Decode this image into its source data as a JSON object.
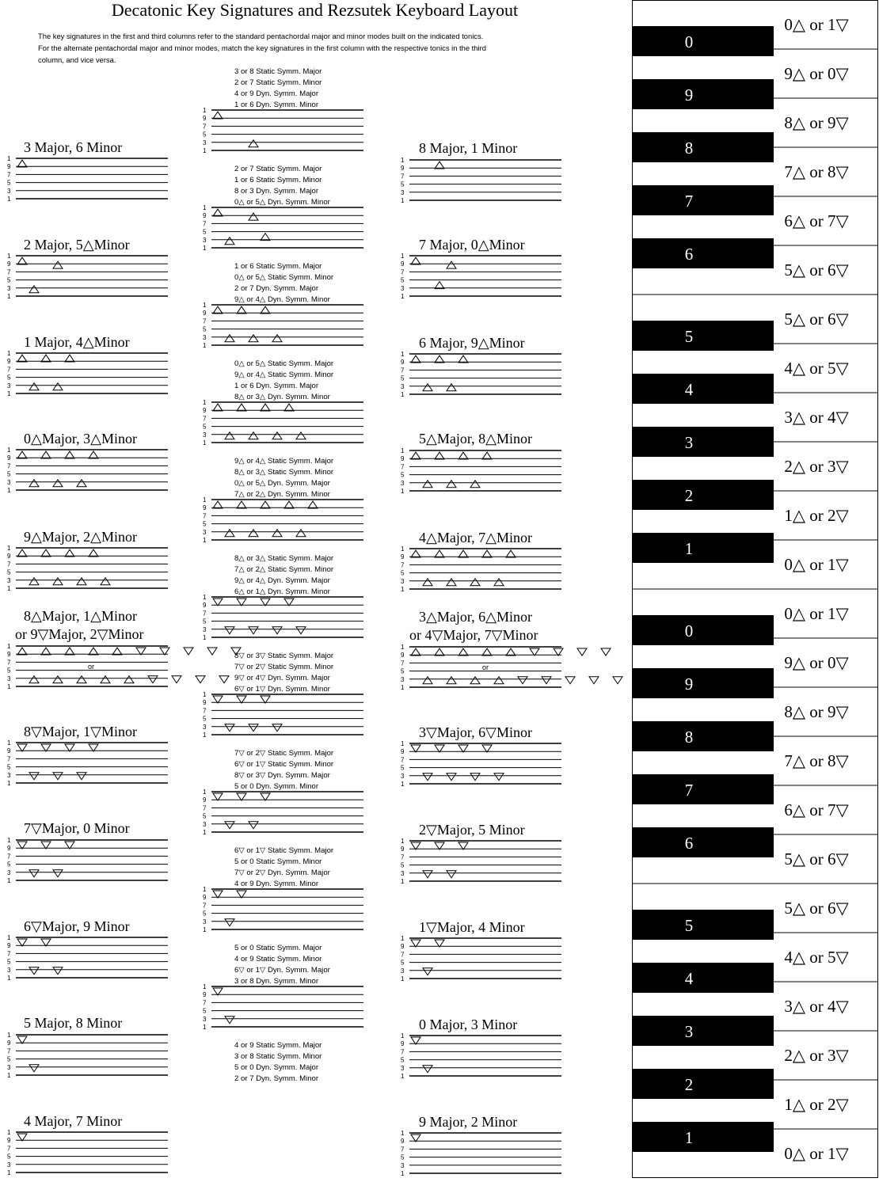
{
  "title": "Decatonic Key Signatures and Rezsutek Keyboard Layout",
  "intro": [
    "The key signatures in the first and third columns refer to the standard pentachordal major and minor modes built on the indicated tonics.",
    "For the alternate pentachordal major and minor modes, match the key signatures in the first column with the respective tonics in the third",
    "column, and vice versa."
  ],
  "staff_line_labels": [
    "1",
    "9",
    "7",
    "5",
    "3",
    "1"
  ],
  "or_text": "or",
  "left_labels": [
    "3   Major, 6   Minor",
    "2   Major, 5△Minor",
    "1   Major, 4△Minor",
    "0△Major, 3△Minor",
    "9△Major, 2△Minor",
    "8△Major, 1△Minor",
    "or 9▽Major, 2▽Minor",
    "8▽Major, 1▽Minor",
    "7▽Major, 0   Minor",
    "6▽Major, 9   Minor",
    "5   Major, 8   Minor",
    "4   Major, 7   Minor"
  ],
  "right_labels": [
    "8   Major, 1   Minor",
    "7   Major, 0△Minor",
    "6   Major, 9△Minor",
    "5△Major, 8△Minor",
    "4△Major, 7△Minor",
    "3△Major, 6△Minor",
    "or 4▽Major, 7▽Minor",
    "3▽Major, 6▽Minor",
    "2▽Major, 5   Minor",
    "1▽Major, 4   Minor",
    "0   Major, 3   Minor",
    "9   Major, 2   Minor"
  ],
  "middle_captions": [
    [
      "3   or 8   Static Symm. Major",
      "2   or 7   Static Symm. Minor",
      "4   or 9   Dyn. Symm. Major",
      "1   or 6   Dyn. Symm. Minor"
    ],
    [
      "2   or 7   Static Symm. Major",
      "1   or 6   Static Symm. Minor",
      "8   or 3   Dyn. Symm. Major",
      "0△ or 5△ Dyn. Symm. Minor"
    ],
    [
      "1   or 6   Static Symm. Major",
      "0△ or 5△ Static Symm. Minor",
      "2   or 7   Dyn. Symm. Major",
      "9△ or 4△ Dyn. Symm. Minor"
    ],
    [
      "0△ or 5△ Static Symm. Major",
      "9△ or 4△ Static Symm. Minor",
      "1   or 6   Dyn. Symm. Major",
      "8△ or 3△ Dyn. Symm. Minor"
    ],
    [
      "9△ or 4△ Static Symm. Major",
      "8△ or 3△ Static Symm. Minor",
      "0△ or 5△ Dyn. Symm. Major",
      "7△ or 2△ Dyn. Symm. Minor"
    ],
    [
      "8△ or 3△ Static Symm. Major",
      "7△ or 2△ Static Symm. Minor",
      "9△ or 4△ Dyn. Symm. Major",
      "6△ or 1△ Dyn. Symm. Minor"
    ],
    [
      "8▽ or 3▽ Static Symm. Major",
      "7▽ or 2▽ Static Symm. Minor",
      "9▽ or 4▽ Dyn. Symm. Major",
      "6▽ or 1▽ Dyn. Symm. Minor"
    ],
    [
      "7▽ or 2▽ Static Symm. Major",
      "6▽ or 1▽ Static Symm. Minor",
      "8▽ or 3▽ Dyn. Symm. Major",
      "5   or 0   Dyn. Symm. Minor"
    ],
    [
      "6▽ or 1▽ Static Symm. Major",
      "5   or 0   Static Symm. Minor",
      "7▽ or 2▽ Dyn. Symm. Major",
      "4   or 9   Dyn. Symm. Minor"
    ],
    [
      "5   or 0   Static Symm. Major",
      "4   or 9   Static Symm. Minor",
      "6▽ or 1▽ Dyn. Symm. Major",
      "3   or 8   Dyn. Symm. Minor"
    ],
    [
      "4   or 9   Static Symm. Major",
      "3   or 8   Static Symm. Minor",
      "5   or 0   Dyn. Symm. Major",
      "2   or 7   Dyn. Symm. Minor"
    ]
  ],
  "keyboard": {
    "black_keys": [
      "0",
      "9",
      "8",
      "7",
      "6",
      "5",
      "4",
      "3",
      "2",
      "1",
      "0",
      "9",
      "8",
      "7",
      "6",
      "5",
      "4",
      "3",
      "2",
      "1"
    ],
    "white_keys": [
      "0△ or 1▽",
      "9△ or 0▽",
      "8△ or 9▽",
      "7△ or 8▽",
      "6△ or 7▽",
      "5△ or 6▽",
      "5△ or 6▽",
      "4△ or 5▽",
      "3△ or 4▽",
      "2△ or 3▽",
      "1△ or 2▽",
      "0△ or 1▽",
      "0△ or 1▽",
      "9△ or 0▽",
      "8△ or 9▽",
      "7△ or 8▽",
      "6△ or 7▽",
      "5△ or 6▽",
      "5△ or 6▽",
      "4△ or 5▽",
      "3△ or 4▽",
      "2△ or 3▽",
      "1△ or 2▽",
      "0△ or 1▽"
    ]
  },
  "staves": {
    "L": [
      [
        [
          0,
          "u"
        ]
      ],
      [
        [
          0,
          "u"
        ],
        [
          1,
          "u"
        ],
        [
          3,
          "u"
        ]
      ],
      [
        [
          0,
          "u"
        ],
        [
          1,
          "u"
        ],
        [
          2,
          "u"
        ],
        [
          3,
          "u"
        ],
        [
          4,
          "u"
        ]
      ],
      [
        [
          0,
          "u"
        ],
        [
          1,
          "u"
        ],
        [
          2,
          "u"
        ],
        [
          3,
          "u"
        ],
        [
          4,
          "u"
        ],
        [
          5,
          "u"
        ],
        [
          6,
          "u"
        ]
      ],
      [
        [
          0,
          "u"
        ],
        [
          1,
          "u"
        ],
        [
          2,
          "u"
        ],
        [
          3,
          "u"
        ],
        [
          4,
          "u"
        ],
        [
          5,
          "u"
        ],
        [
          6,
          "u"
        ],
        [
          7,
          "u"
        ]
      ],
      [
        [
          0,
          "u"
        ],
        [
          1,
          "u"
        ],
        [
          2,
          "u"
        ],
        [
          3,
          "u"
        ],
        [
          4,
          "u"
        ],
        [
          5,
          "u"
        ],
        [
          6,
          "u"
        ],
        [
          7,
          "u"
        ],
        [
          8,
          "u"
        ],
        [
          9,
          "u"
        ],
        [
          10,
          "d"
        ],
        [
          11,
          "d"
        ],
        [
          12,
          "d"
        ],
        [
          13,
          "d"
        ],
        [
          14,
          "d"
        ],
        [
          15,
          "d"
        ],
        [
          16,
          "d"
        ],
        [
          17,
          "d"
        ],
        [
          18,
          "d"
        ]
      ],
      [
        [
          0,
          "d"
        ],
        [
          1,
          "d"
        ],
        [
          2,
          "d"
        ],
        [
          3,
          "d"
        ],
        [
          4,
          "d"
        ],
        [
          5,
          "d"
        ],
        [
          6,
          "d"
        ]
      ],
      [
        [
          0,
          "d"
        ],
        [
          1,
          "d"
        ],
        [
          2,
          "d"
        ],
        [
          3,
          "d"
        ],
        [
          4,
          "d"
        ]
      ],
      [
        [
          0,
          "d"
        ],
        [
          1,
          "d"
        ],
        [
          2,
          "d"
        ],
        [
          3,
          "d"
        ]
      ],
      [
        [
          0,
          "d"
        ],
        [
          1,
          "d"
        ]
      ],
      [
        [
          0,
          "d"
        ]
      ]
    ],
    "R": [
      [
        [
          2,
          "u"
        ]
      ],
      [
        [
          0,
          "u"
        ],
        [
          2,
          "u"
        ],
        [
          3,
          "u"
        ]
      ],
      [
        [
          0,
          "u"
        ],
        [
          1,
          "u"
        ],
        [
          2,
          "u"
        ],
        [
          3,
          "u"
        ],
        [
          4,
          "u"
        ]
      ],
      [
        [
          0,
          "u"
        ],
        [
          1,
          "u"
        ],
        [
          2,
          "u"
        ],
        [
          3,
          "u"
        ],
        [
          4,
          "u"
        ],
        [
          5,
          "u"
        ],
        [
          6,
          "u"
        ]
      ],
      [
        [
          0,
          "u"
        ],
        [
          1,
          "u"
        ],
        [
          2,
          "u"
        ],
        [
          3,
          "u"
        ],
        [
          4,
          "u"
        ],
        [
          5,
          "u"
        ],
        [
          6,
          "u"
        ],
        [
          7,
          "u"
        ],
        [
          8,
          "u"
        ]
      ],
      [
        [
          0,
          "u"
        ],
        [
          1,
          "u"
        ],
        [
          2,
          "u"
        ],
        [
          3,
          "u"
        ],
        [
          4,
          "u"
        ],
        [
          5,
          "u"
        ],
        [
          6,
          "u"
        ],
        [
          7,
          "u"
        ],
        [
          8,
          "u"
        ],
        [
          9,
          "d"
        ],
        [
          10,
          "d"
        ],
        [
          11,
          "d"
        ],
        [
          12,
          "d"
        ],
        [
          13,
          "d"
        ],
        [
          14,
          "d"
        ],
        [
          15,
          "d"
        ],
        [
          16,
          "d"
        ],
        [
          17,
          "d"
        ]
      ],
      [
        [
          0,
          "d"
        ],
        [
          1,
          "d"
        ],
        [
          2,
          "d"
        ],
        [
          3,
          "d"
        ],
        [
          4,
          "d"
        ],
        [
          5,
          "d"
        ],
        [
          6,
          "d"
        ],
        [
          7,
          "d"
        ]
      ],
      [
        [
          0,
          "d"
        ],
        [
          1,
          "d"
        ],
        [
          2,
          "d"
        ],
        [
          3,
          "d"
        ],
        [
          4,
          "d"
        ]
      ],
      [
        [
          0,
          "d"
        ],
        [
          1,
          "d"
        ],
        [
          2,
          "d"
        ]
      ],
      [
        [
          0,
          "d"
        ],
        [
          1,
          "d"
        ]
      ],
      [
        [
          0,
          "d"
        ]
      ]
    ],
    "M": [
      [
        [
          0,
          "u"
        ],
        [
          3,
          "u"
        ]
      ],
      [
        [
          0,
          "u"
        ],
        [
          1,
          "u"
        ],
        [
          3,
          "u"
        ],
        [
          4,
          "u"
        ]
      ],
      [
        [
          0,
          "u"
        ],
        [
          1,
          "u"
        ],
        [
          2,
          "u"
        ],
        [
          3,
          "u"
        ],
        [
          4,
          "u"
        ],
        [
          5,
          "u"
        ]
      ],
      [
        [
          0,
          "u"
        ],
        [
          1,
          "u"
        ],
        [
          2,
          "u"
        ],
        [
          3,
          "u"
        ],
        [
          4,
          "u"
        ],
        [
          5,
          "u"
        ],
        [
          6,
          "u"
        ],
        [
          7,
          "u"
        ]
      ],
      [
        [
          0,
          "u"
        ],
        [
          1,
          "u"
        ],
        [
          2,
          "u"
        ],
        [
          3,
          "u"
        ],
        [
          4,
          "u"
        ],
        [
          5,
          "u"
        ],
        [
          6,
          "u"
        ],
        [
          7,
          "u"
        ],
        [
          8,
          "u"
        ]
      ],
      [
        [
          0,
          "d"
        ],
        [
          1,
          "d"
        ],
        [
          2,
          "d"
        ],
        [
          3,
          "d"
        ],
        [
          4,
          "d"
        ],
        [
          5,
          "d"
        ],
        [
          6,
          "d"
        ],
        [
          7,
          "d"
        ]
      ],
      [
        [
          0,
          "d"
        ],
        [
          1,
          "d"
        ],
        [
          2,
          "d"
        ],
        [
          3,
          "d"
        ],
        [
          4,
          "d"
        ],
        [
          5,
          "d"
        ]
      ],
      [
        [
          0,
          "d"
        ],
        [
          1,
          "d"
        ],
        [
          2,
          "d"
        ],
        [
          3,
          "d"
        ],
        [
          4,
          "d"
        ]
      ],
      [
        [
          0,
          "d"
        ],
        [
          1,
          "d"
        ],
        [
          2,
          "d"
        ]
      ],
      [
        [
          0,
          "d"
        ],
        [
          1,
          "d"
        ]
      ]
    ]
  }
}
